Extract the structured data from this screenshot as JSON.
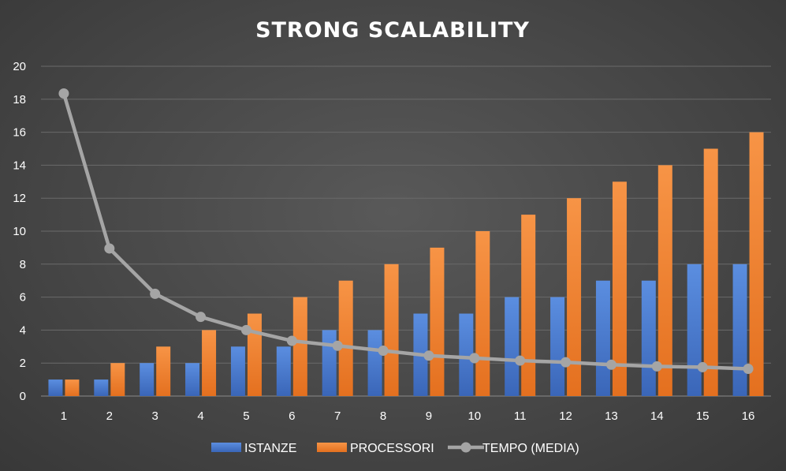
{
  "chart_data": {
    "type": "bar",
    "title": "STRONG SCALABILITY",
    "xlabel": "",
    "ylabel": "",
    "categories": [
      "1",
      "2",
      "3",
      "4",
      "5",
      "6",
      "7",
      "8",
      "9",
      "10",
      "11",
      "12",
      "13",
      "14",
      "15",
      "16"
    ],
    "ylim": [
      0,
      20
    ],
    "yticks": [
      0,
      2,
      4,
      6,
      8,
      10,
      12,
      14,
      16,
      18,
      20
    ],
    "grid": true,
    "legend_position": "bottom",
    "series": [
      {
        "name": "ISTANZE",
        "kind": "bar",
        "color": "#4472C4",
        "values": [
          1,
          1,
          2,
          2,
          3,
          3,
          4,
          4,
          5,
          5,
          6,
          6,
          7,
          7,
          8,
          8
        ]
      },
      {
        "name": "PROCESSORI",
        "kind": "bar",
        "color": "#ED7D31",
        "values": [
          1,
          2,
          3,
          4,
          5,
          6,
          7,
          8,
          9,
          10,
          11,
          12,
          13,
          14,
          15,
          16
        ]
      },
      {
        "name": "TEMPO (MEDIA)",
        "kind": "line",
        "color": "#A5A5A5",
        "values": [
          18.35,
          8.95,
          6.2,
          4.8,
          4.0,
          3.35,
          3.05,
          2.75,
          2.45,
          2.3,
          2.15,
          2.05,
          1.9,
          1.8,
          1.75,
          1.65
        ]
      }
    ]
  }
}
